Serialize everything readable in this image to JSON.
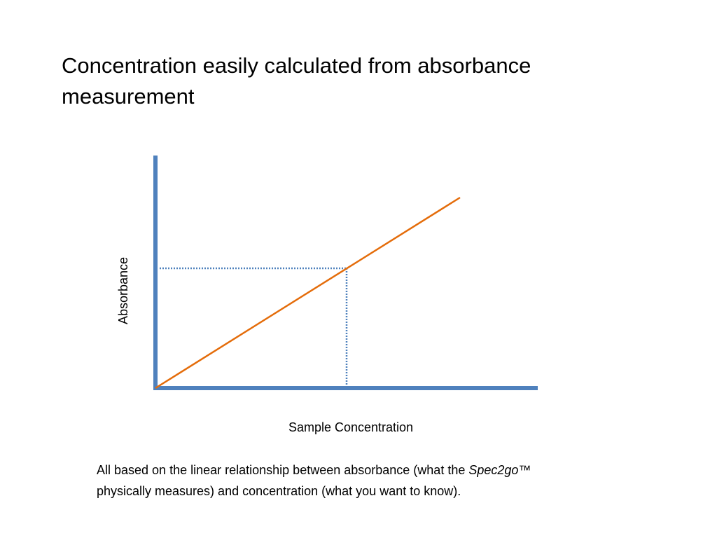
{
  "title": "Concentration easily calculated from absorbance measurement",
  "diagram": {
    "y_axis_label": "Absorbance",
    "x_axis_label": "Sample Concentration"
  },
  "caption": {
    "before": "All based on the linear relationship between absorbance (what the ",
    "product": "Spec2go™",
    "after": "physically measures) and concentration (what you want to know)."
  }
}
